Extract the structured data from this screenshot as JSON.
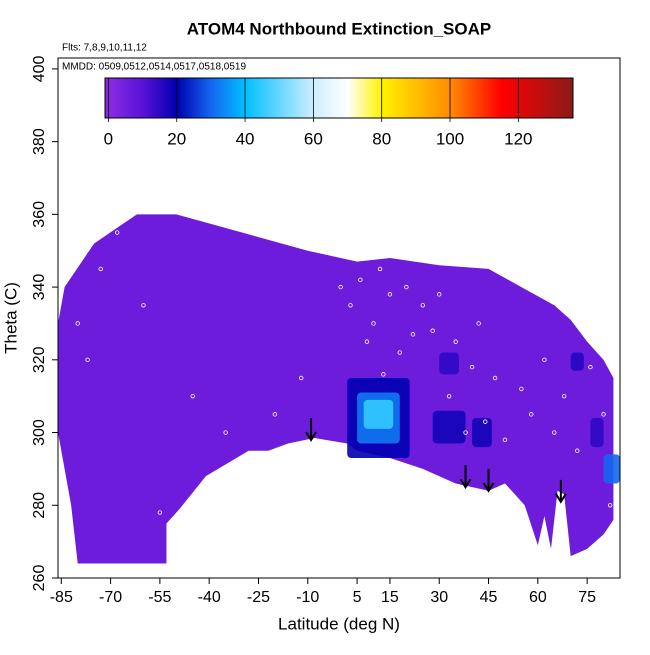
{
  "chart_data": {
    "type": "field",
    "title": "ATOM4 Northbound Extinction_SOAP",
    "subtitle": "Flts: 7,8,9,10,11,12",
    "annotation": "MMDD: 0509,0512,0514,0517,0518,0519",
    "x_label": "Latitude (deg N)",
    "y_label": "Theta (C)",
    "xlim": [
      -86,
      85
    ],
    "ylim": [
      260,
      403
    ],
    "xticks": [
      -85,
      -70,
      -55,
      -40,
      -25,
      -10,
      5,
      15,
      30,
      45,
      60,
      75
    ],
    "yticks": [
      260,
      280,
      300,
      320,
      340,
      360,
      380,
      400
    ],
    "colorbar": {
      "lim": [
        -1,
        136
      ],
      "ticks": [
        0,
        20,
        40,
        60,
        80,
        100,
        120
      ],
      "stops": [
        {
          "value": 0,
          "color": "#8a2be2"
        },
        {
          "value": 10,
          "color": "#5a12d8"
        },
        {
          "value": 20,
          "color": "#0000b0"
        },
        {
          "value": 30,
          "color": "#1466f0"
        },
        {
          "value": 40,
          "color": "#00bfff"
        },
        {
          "value": 60,
          "color": "#cdeeff"
        },
        {
          "value": 70,
          "color": "#ffffff"
        },
        {
          "value": 80,
          "color": "#fff200"
        },
        {
          "value": 100,
          "color": "#ff8c00"
        },
        {
          "value": 115,
          "color": "#ff0000"
        },
        {
          "value": 136,
          "color": "#8b1a1a"
        }
      ]
    },
    "field": {
      "value": 6,
      "lat": [
        -80,
        -53,
        -53,
        -49,
        -41,
        -28,
        -22,
        -16,
        -8,
        2,
        5,
        15,
        25,
        35,
        45,
        50,
        56,
        60,
        62,
        64,
        66,
        68,
        70,
        75,
        80,
        83,
        83,
        80,
        75,
        70,
        65,
        55,
        45,
        30,
        15,
        5,
        -10,
        -30,
        -50,
        -62,
        -75,
        -84,
        -86,
        -86,
        -82
      ],
      "theta": [
        264,
        264,
        275,
        279,
        288,
        295,
        295,
        297,
        298.5,
        297,
        295,
        293,
        290,
        286,
        284,
        286,
        280,
        269,
        277,
        268,
        284,
        283,
        266,
        268,
        272,
        276,
        315,
        320,
        325,
        331,
        335,
        340,
        345,
        346,
        348,
        347,
        350,
        355,
        360,
        360,
        352,
        340,
        330,
        300,
        280
      ]
    },
    "patches": [
      {
        "lat": [
          2,
          21
        ],
        "theta": [
          293,
          315
        ],
        "value": 20
      },
      {
        "lat": [
          5,
          18
        ],
        "theta": [
          297,
          311
        ],
        "value": 32
      },
      {
        "lat": [
          7,
          16
        ],
        "theta": [
          301,
          309
        ],
        "value": 45
      },
      {
        "lat": [
          28,
          38
        ],
        "theta": [
          297,
          306
        ],
        "value": 18
      },
      {
        "lat": [
          40,
          46
        ],
        "theta": [
          296,
          304
        ],
        "value": 18
      },
      {
        "lat": [
          70,
          74
        ],
        "theta": [
          317,
          322
        ],
        "value": 16
      },
      {
        "lat": [
          80,
          85
        ],
        "theta": [
          286,
          294
        ],
        "value": 30
      },
      {
        "lat": [
          76,
          80
        ],
        "theta": [
          296,
          304
        ],
        "value": 15
      },
      {
        "lat": [
          30,
          36
        ],
        "theta": [
          316,
          322
        ],
        "value": 15
      }
    ],
    "points": {
      "lat": [
        -80,
        -77,
        -73,
        -68,
        -60,
        -55,
        -45,
        -35,
        -20,
        -12,
        0,
        3,
        6,
        8,
        10,
        12,
        13,
        15,
        18,
        20,
        22,
        25,
        28,
        30,
        33,
        35,
        38,
        40,
        42,
        44,
        47,
        50,
        55,
        58,
        62,
        65,
        68,
        72,
        76,
        80,
        82
      ],
      "theta": [
        330,
        320,
        345,
        355,
        335,
        278,
        310,
        300,
        305,
        315,
        340,
        335,
        342,
        325,
        330,
        345,
        316,
        338,
        322,
        340,
        327,
        335,
        328,
        338,
        310,
        325,
        300,
        318,
        330,
        303,
        315,
        298,
        312,
        305,
        320,
        300,
        310,
        295,
        318,
        305,
        280
      ]
    },
    "arrows": {
      "lat": [
        -9,
        38,
        45,
        67
      ],
      "theta": [
        304,
        291,
        290,
        287
      ]
    }
  }
}
